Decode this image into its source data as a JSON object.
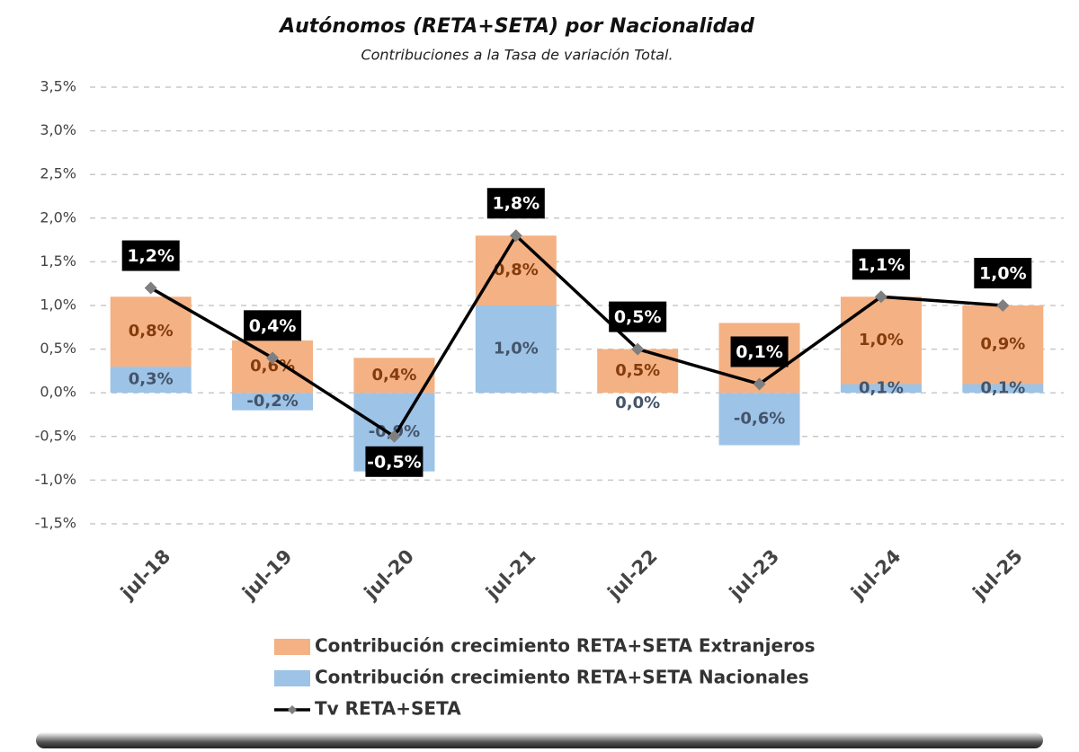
{
  "chart_data": {
    "type": "bar",
    "stacked": true,
    "title": "Autónomos (RETA+SETA) por Nacionalidad",
    "subtitle": "Contribuciones a la Tasa de variación Total.",
    "categories": [
      "jul-18",
      "jul-19",
      "jul-20",
      "jul-21",
      "jul-22",
      "jul-23",
      "jul-24",
      "jul-25"
    ],
    "series": [
      {
        "name": "Contribución crecimiento RETA+SETA Extranjeros",
        "type": "bar",
        "color": "#f4b183",
        "label_color": "#843c0c",
        "values": [
          0.8,
          0.6,
          0.4,
          0.8,
          0.5,
          0.8,
          1.0,
          0.9
        ],
        "value_labels": [
          "0,8%",
          "0,6%",
          "0,4%",
          "0,8%",
          "0,5%",
          "0,8%",
          "1,0%",
          "0,9%"
        ]
      },
      {
        "name": "Contribución crecimiento RETA+SETA Nacionales",
        "type": "bar",
        "color": "#9dc3e6",
        "label_color": "#44546a",
        "values": [
          0.3,
          -0.2,
          -0.9,
          1.0,
          0.0,
          -0.6,
          0.1,
          0.1
        ],
        "value_labels": [
          "0,3%",
          "-0,2%",
          "-0,9%",
          "1,0%",
          "0,0%",
          "-0,6%",
          "0,1%",
          "0,1%"
        ]
      },
      {
        "name": "Tv RETA+SETA",
        "type": "line",
        "color": "#000000",
        "marker_color": "#7f7f7f",
        "values": [
          1.2,
          0.4,
          -0.5,
          1.8,
          0.5,
          0.1,
          1.1,
          1.0
        ],
        "value_labels": [
          "1,2%",
          "0,4%",
          "-0,5%",
          "1,8%",
          "0,5%",
          "0,1%",
          "1,1%",
          "1,0%"
        ]
      }
    ],
    "ylim": [
      -1.5,
      3.5
    ],
    "yticks": [
      {
        "value": -1.5,
        "label": "-1,5%"
      },
      {
        "value": -1.0,
        "label": "-1,0%"
      },
      {
        "value": -0.5,
        "label": "-0,5%"
      },
      {
        "value": 0,
        "label": "0,0%"
      },
      {
        "value": 0.5,
        "label": "0,5%"
      },
      {
        "value": 1.0,
        "label": "1,0%"
      },
      {
        "value": 1.5,
        "label": "1,5%"
      },
      {
        "value": 2.0,
        "label": "2,0%"
      },
      {
        "value": 2.5,
        "label": "2,5%"
      },
      {
        "value": 3.0,
        "label": "3,0%"
      },
      {
        "value": 3.5,
        "label": "3,5%"
      }
    ],
    "grid": true
  }
}
